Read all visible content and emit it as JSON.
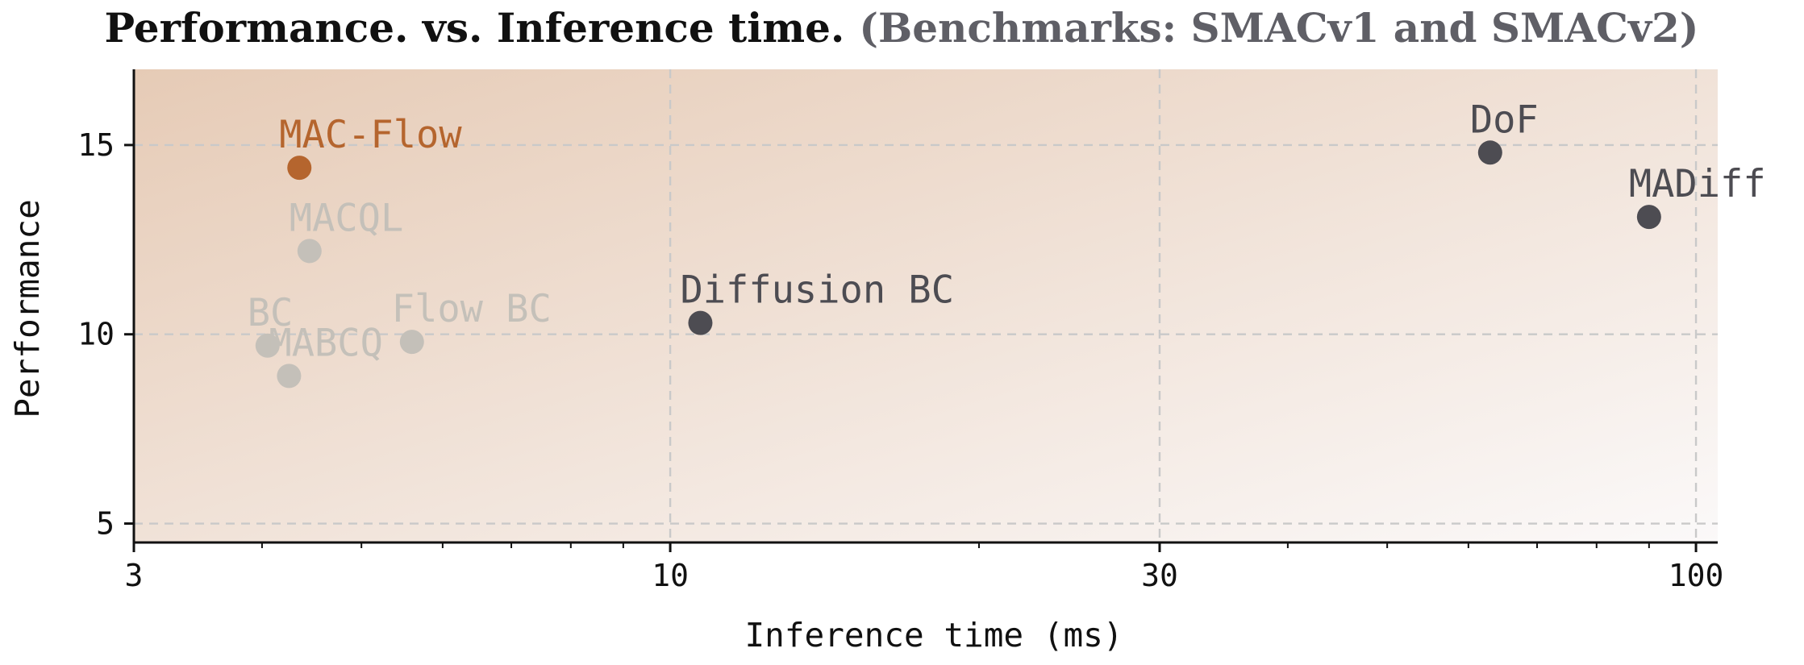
{
  "chart_data": {
    "type": "scatter",
    "title": "Performance. vs. Inference time.",
    "subtitle": "(Benchmarks: SMACv1 and SMACv2)",
    "xlabel": "Inference time (ms)",
    "ylabel": "Performance",
    "x_scale": "log",
    "xlim": [
      3,
      105
    ],
    "ylim": [
      4.5,
      17
    ],
    "x_ticks": [
      3,
      10,
      30,
      100
    ],
    "x_tick_labels": [
      "3",
      "10",
      "30",
      "100"
    ],
    "y_ticks": [
      5,
      10,
      15
    ],
    "y_tick_labels": [
      "5",
      "10",
      "15"
    ],
    "grid": true,
    "colors": {
      "highlight": "#b5652e",
      "dark": "#4d4c52",
      "light": "#c4c0b9",
      "background_gradient_start": "#e6cbb6",
      "background_gradient_end": "#fbf9f9"
    },
    "points": [
      {
        "label": "MAC-Flow",
        "x": 4.35,
        "y": 14.4,
        "group": "highlight"
      },
      {
        "label": "MACQL",
        "x": 4.45,
        "y": 12.2,
        "group": "light"
      },
      {
        "label": "BC",
        "x": 4.05,
        "y": 9.7,
        "group": "light"
      },
      {
        "label": "MABCQ",
        "x": 4.25,
        "y": 8.9,
        "group": "light"
      },
      {
        "label": "Flow BC",
        "x": 5.6,
        "y": 9.8,
        "group": "light"
      },
      {
        "label": "Diffusion BC",
        "x": 10.7,
        "y": 10.3,
        "group": "dark"
      },
      {
        "label": "DoF",
        "x": 63,
        "y": 14.8,
        "group": "dark"
      },
      {
        "label": "MADiff",
        "x": 90,
        "y": 13.1,
        "group": "dark"
      }
    ]
  }
}
